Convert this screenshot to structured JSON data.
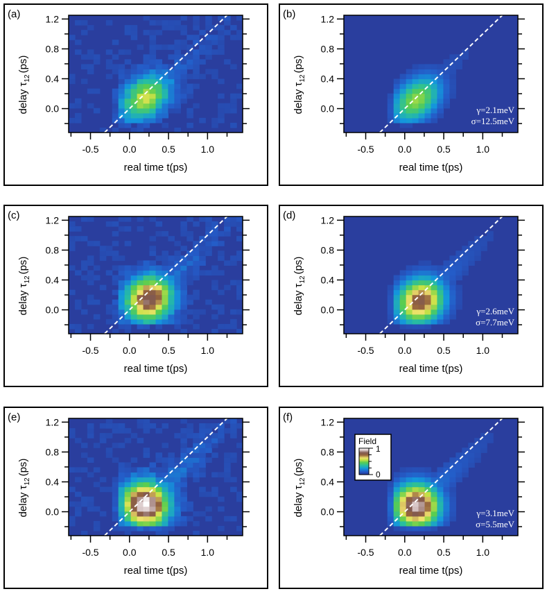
{
  "chart_data": [
    {
      "type": "heatmap",
      "panel_label": "(a)",
      "xlabel": "real time t(ps)",
      "ylabel": "delay τ",
      "ylabel_sub": "12",
      "ylabel_unit": "(ps)",
      "xlim": [
        -0.78,
        1.45
      ],
      "ylim": [
        -0.32,
        1.25
      ],
      "x_ticks": [
        "-0.5",
        "0.0",
        "0.5",
        "1.0"
      ],
      "y_ticks": [
        "0.0",
        "0.4",
        "0.8",
        "1.2"
      ],
      "peak": {
        "t": 0.2,
        "tau": 0.15,
        "intensity": 0.55
      },
      "noise": true,
      "diagonal": "dashed white t=τ"
    },
    {
      "type": "heatmap",
      "panel_label": "(b)",
      "xlabel": "real time t(ps)",
      "ylabel": "delay τ",
      "ylabel_sub": "12",
      "ylabel_unit": "(ps)",
      "xlim": [
        -0.78,
        1.45
      ],
      "ylim": [
        -0.32,
        1.25
      ],
      "x_ticks": [
        "-0.5",
        "0.0",
        "0.5",
        "1.0"
      ],
      "y_ticks": [
        "0.0",
        "0.4",
        "0.8",
        "1.2"
      ],
      "peak": {
        "t": 0.15,
        "tau": 0.12,
        "intensity": 0.52
      },
      "noise": false,
      "diagonal": "dashed white t=τ",
      "annotation": [
        "γ=2.1meV",
        "σ=12.5meV"
      ]
    },
    {
      "type": "heatmap",
      "panel_label": "(c)",
      "xlabel": "real time t(ps)",
      "ylabel": "delay τ",
      "ylabel_sub": "12",
      "ylabel_unit": "(ps)",
      "xlim": [
        -0.78,
        1.45
      ],
      "ylim": [
        -0.32,
        1.25
      ],
      "x_ticks": [
        "-0.5",
        "0.0",
        "0.5",
        "1.0"
      ],
      "y_ticks": [
        "0.0",
        "0.4",
        "0.8",
        "1.2"
      ],
      "peak": {
        "t": 0.25,
        "tau": 0.15,
        "intensity": 0.85
      },
      "noise": true,
      "diagonal": "dashed white t=τ"
    },
    {
      "type": "heatmap",
      "panel_label": "(d)",
      "xlabel": "real time t(ps)",
      "ylabel": "delay τ",
      "ylabel_sub": "12",
      "ylabel_unit": "(ps)",
      "xlim": [
        -0.78,
        1.45
      ],
      "ylim": [
        -0.32,
        1.25
      ],
      "x_ticks": [
        "-0.5",
        "0.0",
        "0.5",
        "1.0"
      ],
      "y_ticks": [
        "0.0",
        "0.4",
        "0.8",
        "1.2"
      ],
      "peak": {
        "t": 0.2,
        "tau": 0.12,
        "intensity": 0.82
      },
      "noise": false,
      "diagonal": "dashed white t=τ",
      "annotation": [
        "γ=2.6meV",
        "σ=7.7meV"
      ]
    },
    {
      "type": "heatmap",
      "panel_label": "(e)",
      "xlabel": "real time t(ps)",
      "ylabel": "delay τ",
      "ylabel_sub": "12",
      "ylabel_unit": "(ps)",
      "xlim": [
        -0.78,
        1.45
      ],
      "ylim": [
        -0.32,
        1.25
      ],
      "x_ticks": [
        "-0.5",
        "0.0",
        "0.5",
        "1.0"
      ],
      "y_ticks": [
        "0.0",
        "0.4",
        "0.8",
        "1.2"
      ],
      "peak": {
        "t": 0.2,
        "tau": 0.1,
        "intensity": 1.0
      },
      "noise": true,
      "diagonal": "dashed white t=τ"
    },
    {
      "type": "heatmap",
      "panel_label": "(f)",
      "xlabel": "real time t(ps)",
      "ylabel": "delay τ",
      "ylabel_sub": "12",
      "ylabel_unit": "(ps)",
      "xlim": [
        -0.78,
        1.45
      ],
      "ylim": [
        -0.32,
        1.25
      ],
      "x_ticks": [
        "-0.5",
        "0.0",
        "0.5",
        "1.0"
      ],
      "y_ticks": [
        "0.0",
        "0.4",
        "0.8",
        "1.2"
      ],
      "peak": {
        "t": 0.15,
        "tau": 0.08,
        "intensity": 0.95
      },
      "noise": false,
      "diagonal": "dashed white t=τ",
      "annotation": [
        "γ=3.1meV",
        "σ=5.5meV"
      ],
      "colorbar": {
        "title": "Field",
        "ticks": [
          "1",
          "0"
        ]
      }
    }
  ],
  "colors": {
    "background": "#2a3e9e",
    "axis": "#000000",
    "diagonal": "#ffffff"
  }
}
